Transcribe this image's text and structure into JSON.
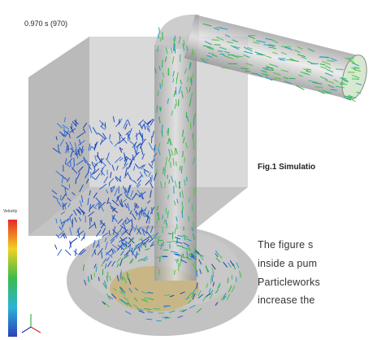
{
  "image": {
    "time_label": "0.970 s (970)",
    "legend_title": "Velocity"
  },
  "caption": "Fig.1 Simulatio",
  "body": [
    "The figure s",
    "inside a pum",
    "Particleworks",
    "increase the"
  ]
}
